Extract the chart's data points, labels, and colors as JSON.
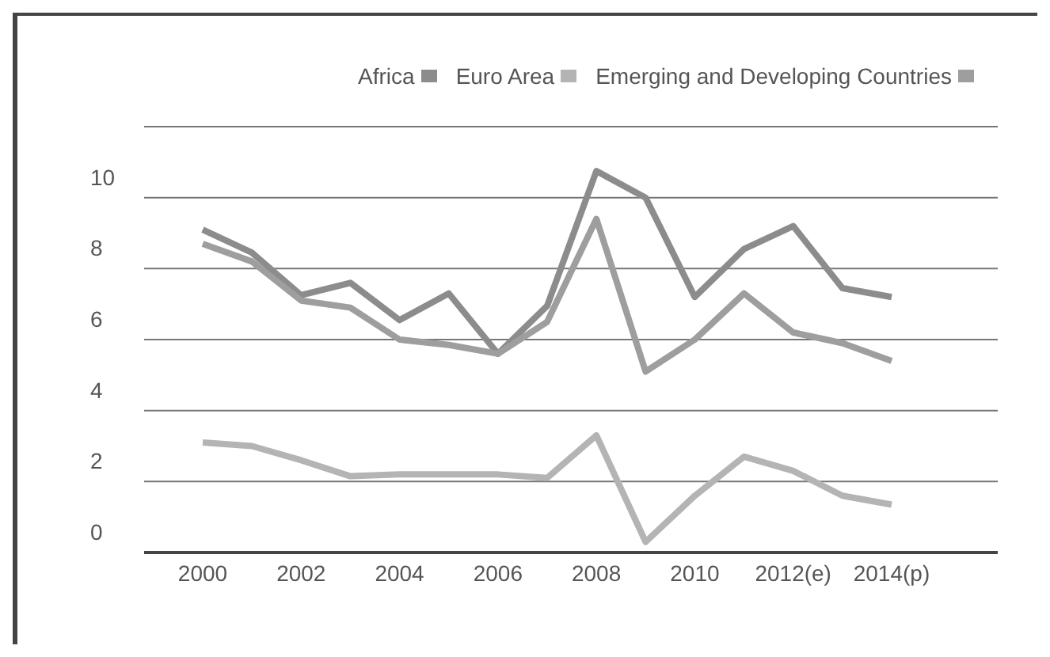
{
  "chart_data": {
    "type": "line",
    "categories": [
      "2000",
      null,
      "2002",
      null,
      "2004",
      null,
      "2006",
      null,
      "2008",
      null,
      "2010",
      null,
      "2012(e)",
      null,
      "2014(p)"
    ],
    "series": [
      {
        "name": "Africa",
        "color": "#8c8c8c",
        "values": [
          9.1,
          8.45,
          7.25,
          7.6,
          6.55,
          7.3,
          5.6,
          6.95,
          10.75,
          10.0,
          7.2,
          8.55,
          9.2,
          7.45,
          7.2
        ]
      },
      {
        "name": "Euro Area",
        "color": "#b4b4b4",
        "values": [
          3.1,
          3.0,
          2.6,
          2.15,
          2.2,
          2.2,
          2.2,
          2.1,
          3.3,
          0.3,
          1.6,
          2.7,
          2.3,
          1.6,
          1.35
        ]
      },
      {
        "name": "Emerging and Developing Countries",
        "color": "#9e9e9e",
        "values": [
          8.7,
          8.2,
          7.1,
          6.9,
          6.0,
          5.85,
          5.6,
          6.5,
          9.4,
          5.1,
          6.0,
          7.3,
          6.2,
          5.9,
          5.4
        ]
      }
    ],
    "ylim": [
      0,
      12
    ],
    "yticks": [
      0,
      2,
      4,
      6,
      8,
      10,
      {
        "value": 12,
        "label": null
      }
    ],
    "grid": "y",
    "legend": "top right",
    "marker": "none",
    "line_style": "solid"
  }
}
